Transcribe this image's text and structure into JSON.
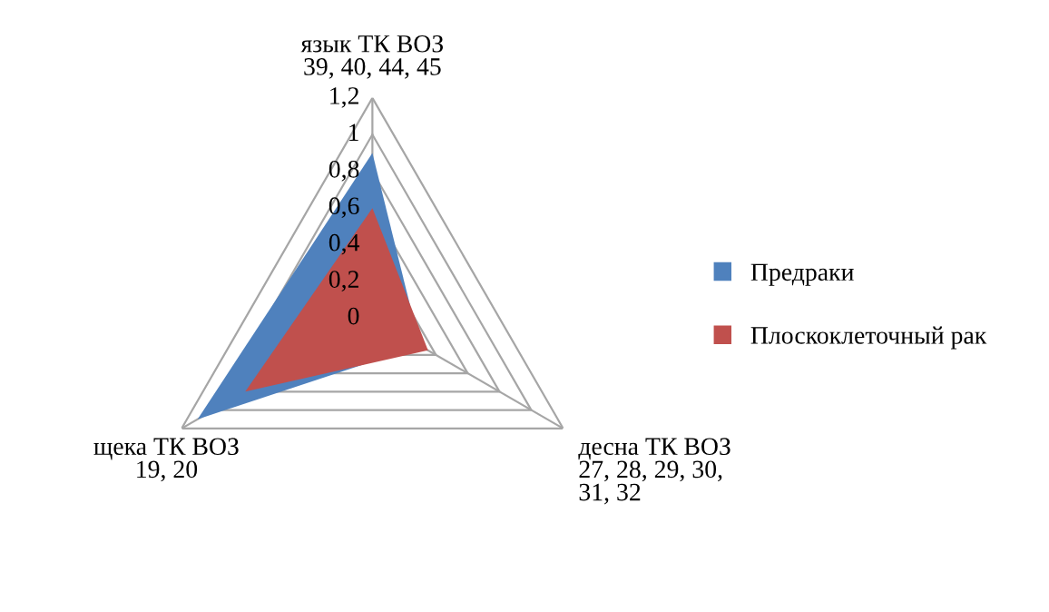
{
  "chart_data": {
    "type": "radar",
    "categories": [
      "язык ТК ВОЗ\n39, 40, 44, 45",
      "десна ТК ВОЗ\n27, 28, 29, 30,\n31, 32",
      "щека ТК ВОЗ\n19, 20"
    ],
    "series": [
      {
        "name": "Предраки",
        "color": "#4f81bd",
        "values": [
          0.9,
          0.3,
          1.1
        ]
      },
      {
        "name": "Плоскоклеточный рак",
        "color": "#c0504d",
        "values": [
          0.6,
          0.35,
          0.8
        ]
      }
    ],
    "ylim": [
      0,
      1.2
    ],
    "yticks": [
      {
        "value": 0,
        "label": "0"
      },
      {
        "value": 0.2,
        "label": "0,2"
      },
      {
        "value": 0.4,
        "label": "0,4"
      },
      {
        "value": 0.6,
        "label": "0,6"
      },
      {
        "value": 0.8,
        "label": "0,8"
      },
      {
        "value": 1,
        "label": "1"
      },
      {
        "value": 1.2,
        "label": "1,2"
      }
    ],
    "grid": true,
    "legend": "right",
    "marker": "none"
  }
}
